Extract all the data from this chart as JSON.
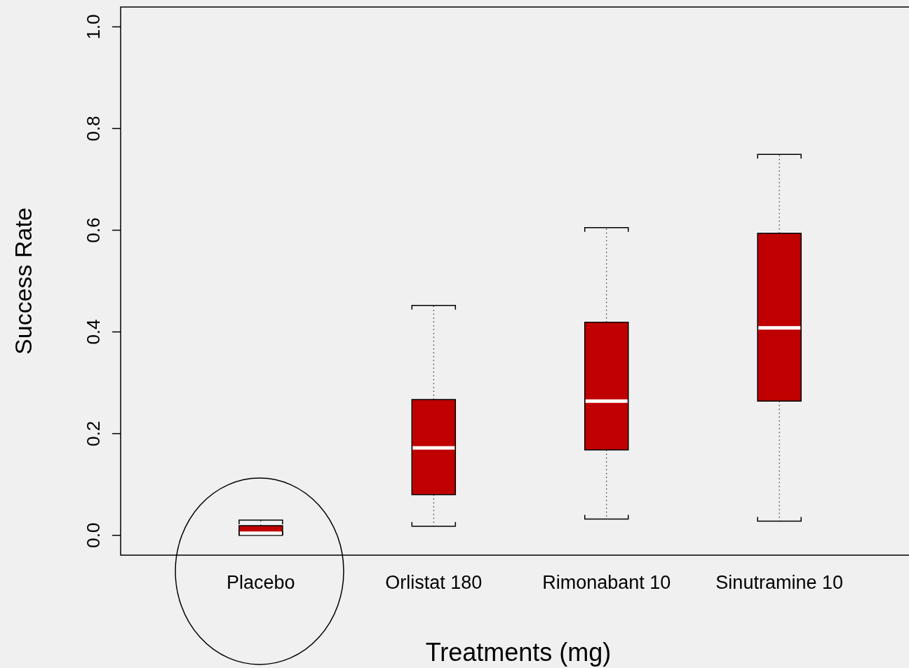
{
  "chart_data": {
    "type": "box",
    "xlabel": "Treatments (mg)",
    "ylabel": "Success Rate",
    "categories": [
      "Placebo",
      "Orlistat 180",
      "Rimonabant 10",
      "Sinutramine 10"
    ],
    "color": "#c00000",
    "ylim": [
      -0.039,
      1.039
    ],
    "yticks": [
      {
        "value": 0,
        "label": "0.0"
      },
      {
        "value": 0.2,
        "label": "0.2"
      },
      {
        "value": 0.4,
        "label": "0.4"
      },
      {
        "value": 0.6,
        "label": "0.6"
      },
      {
        "value": 0.8,
        "label": "0.8"
      },
      {
        "value": 1,
        "label": "1.0"
      }
    ],
    "boxes": [
      {
        "low": 0,
        "q1": 0.002,
        "median": 0.004,
        "q3": 0.019,
        "high": 0.03
      },
      {
        "low": 0.018,
        "q1": 0.08,
        "median": 0.172,
        "q3": 0.267,
        "high": 0.452
      },
      {
        "low": 0.032,
        "q1": 0.168,
        "median": 0.264,
        "q3": 0.419,
        "high": 0.605
      },
      {
        "low": 0.028,
        "q1": 0.264,
        "median": 0.408,
        "q3": 0.594,
        "high": 0.749
      }
    ]
  }
}
